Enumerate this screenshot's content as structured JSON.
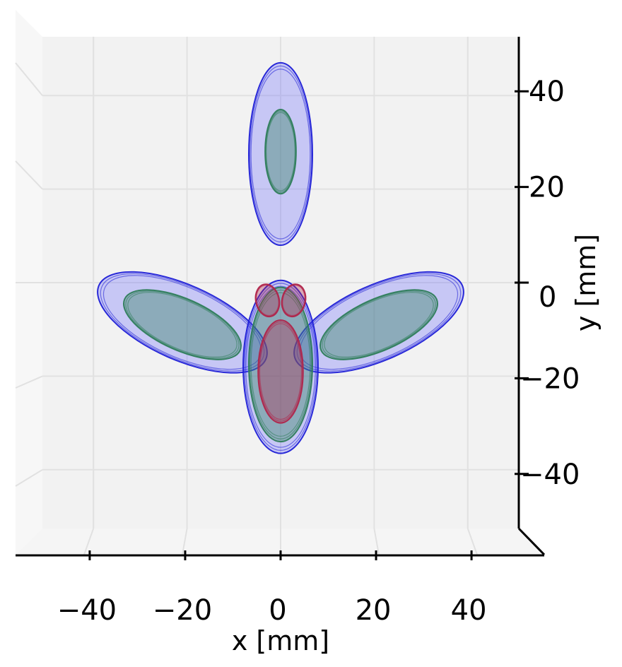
{
  "chart_data": {
    "type": "scatter",
    "view": "3d-top-down",
    "xlabel": "x [mm]",
    "ylabel": "y [mm]",
    "xlim": [
      -50,
      50
    ],
    "ylim": [
      -50,
      50
    ],
    "x_ticks": [
      -40,
      -20,
      0,
      20,
      40
    ],
    "y_ticks": [
      -40,
      -20,
      0,
      20,
      40
    ],
    "x_tick_labels": [
      "−40",
      "−20",
      "0",
      "20",
      "40"
    ],
    "y_tick_labels": [
      "−40",
      "−20",
      "0",
      "20",
      "40"
    ],
    "grid": true,
    "legend": "none",
    "colors": {
      "outer_contour": "#1f1fd6",
      "middle_contour": "#2e7d5a",
      "inner_contour": "#b0244a",
      "pane": "#f2f2f2",
      "grid": "#e1e1e1"
    },
    "regions": [
      {
        "level": "outer",
        "shape": "ellipse",
        "cx": 0,
        "cy": 27.5,
        "rx": 6.8,
        "ry": 19.5,
        "angle": 0
      },
      {
        "level": "middle",
        "shape": "ellipse",
        "cx": 0,
        "cy": 28,
        "rx": 3.3,
        "ry": 9,
        "angle": 0
      },
      {
        "level": "outer",
        "shape": "ellipse",
        "cx": -21,
        "cy": -8.5,
        "rx": 19.5,
        "ry": 8,
        "angle": -24
      },
      {
        "level": "middle",
        "shape": "ellipse",
        "cx": -21,
        "cy": -9,
        "rx": 13.5,
        "ry": 5.5,
        "angle": -24
      },
      {
        "level": "outer",
        "shape": "ellipse",
        "cx": 21,
        "cy": -8.5,
        "rx": 19.5,
        "ry": 8,
        "angle": 24
      },
      {
        "level": "middle",
        "shape": "ellipse",
        "cx": 21,
        "cy": -9,
        "rx": 13.5,
        "ry": 5.5,
        "angle": 24
      },
      {
        "level": "outer",
        "shape": "ellipse",
        "cx": 0,
        "cy": -18,
        "rx": 8,
        "ry": 18.5,
        "angle": 0
      },
      {
        "level": "middle",
        "shape": "ellipse",
        "cx": 0,
        "cy": -17.5,
        "rx": 6.8,
        "ry": 16.5,
        "angle": 0
      },
      {
        "level": "inner",
        "shape": "ellipse",
        "cx": 0,
        "cy": -19,
        "rx": 4.8,
        "ry": 11,
        "angle": 0
      },
      {
        "level": "inner",
        "shape": "ellipse",
        "cx": -2.8,
        "cy": -3.8,
        "rx": 2.5,
        "ry": 3.5,
        "angle": 12
      },
      {
        "level": "inner",
        "shape": "ellipse",
        "cx": 2.8,
        "cy": -3.8,
        "rx": 2.5,
        "ry": 3.5,
        "angle": -12
      }
    ]
  }
}
